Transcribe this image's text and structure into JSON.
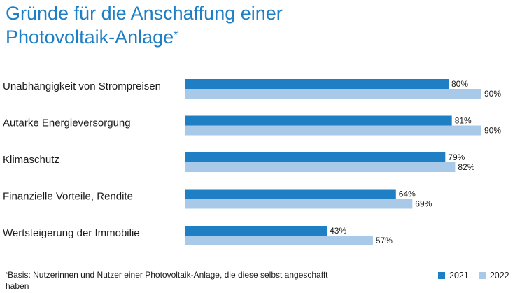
{
  "title": {
    "line1": "Gründe für die Anschaffung einer",
    "line2": "Photovoltaik-Anlage",
    "marker": "*"
  },
  "footnote": {
    "marker": "*",
    "text": "Basis: Nutzerinnen und Nutzer einer Photovoltaik-Anlage, die diese selbst angeschafft haben"
  },
  "colors": {
    "series_2021": "#1f7fc4",
    "series_2022": "#a9c9e9"
  },
  "chart_data": {
    "type": "bar",
    "orientation": "horizontal",
    "title": "Gründe für die Anschaffung einer Photovoltaik-Anlage*",
    "categories": [
      "Unabhängigkeit von Strompreisen",
      "Autarke Energieversorgung",
      "Klimaschutz",
      "Finanzielle Vorteile, Rendite",
      "Wertsteigerung der Immobilie"
    ],
    "series": [
      {
        "name": "2021",
        "values": [
          80,
          81,
          79,
          64,
          43
        ],
        "labels": [
          "80%",
          "81%",
          "79%",
          "64%",
          "43%"
        ]
      },
      {
        "name": "2022",
        "values": [
          90,
          90,
          82,
          69,
          57
        ],
        "labels": [
          "90%",
          "90%",
          "82%",
          "69%",
          "57%"
        ]
      }
    ],
    "xlim": [
      0,
      100
    ],
    "unit": "%",
    "grid": false,
    "legend": "bottom-right"
  }
}
